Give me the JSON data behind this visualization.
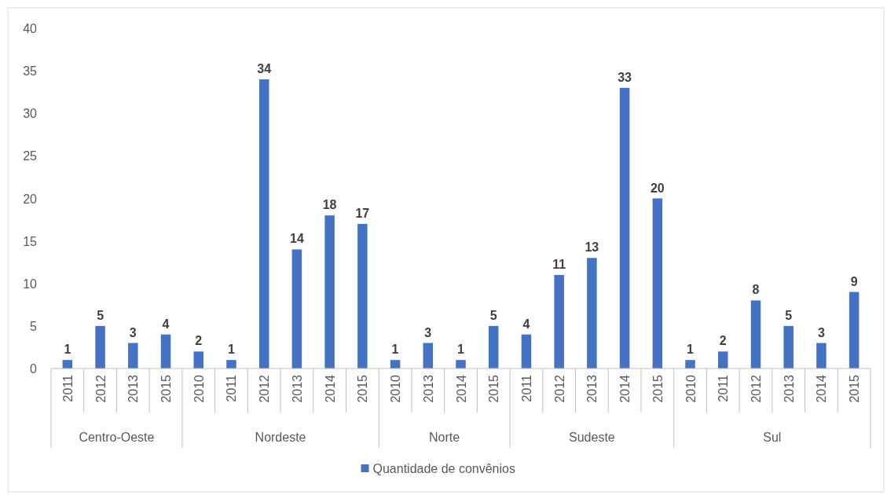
{
  "chart_data": {
    "type": "bar",
    "categories": [
      "2011",
      "2012",
      "2013",
      "2015",
      "2010",
      "2011",
      "2012",
      "2013",
      "2014",
      "2015",
      "2010",
      "2013",
      "2014",
      "2015",
      "2011",
      "2012",
      "2013",
      "2014",
      "2015",
      "2010",
      "2011",
      "2012",
      "2013",
      "2014",
      "2015"
    ],
    "series": [
      {
        "name": "Quantidade de convênios",
        "color": "#4472c4",
        "values": [
          1,
          5,
          3,
          4,
          2,
          1,
          34,
          14,
          18,
          17,
          1,
          3,
          1,
          5,
          4,
          11,
          13,
          33,
          20,
          1,
          2,
          8,
          5,
          3,
          9
        ]
      }
    ],
    "annotations": [
      "Centro-Oeste",
      "Nordeste",
      "Norte",
      "Sudeste",
      "Sul"
    ],
    "ylim": [
      0,
      40
    ],
    "yticks": [
      0,
      5,
      10,
      15,
      20,
      25,
      30,
      35,
      40
    ],
    "data_labels": true,
    "legend": "bottom",
    "grid": false
  }
}
